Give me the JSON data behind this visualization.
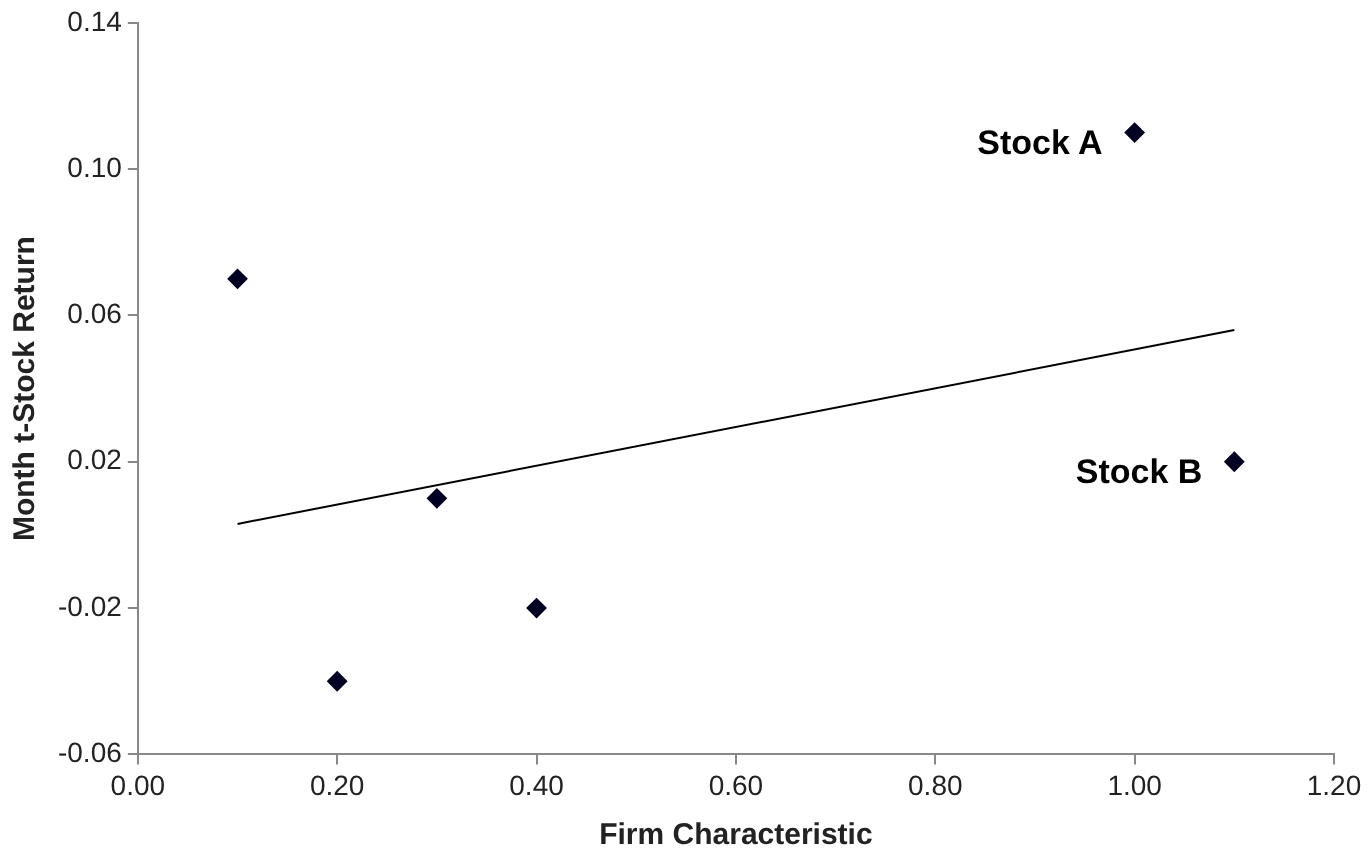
{
  "chart_data": {
    "type": "scatter",
    "xlabel": "Firm Characteristic",
    "ylabel": "Month t-Stock Return",
    "series": [
      {
        "color": "#000022",
        "marker": "diamond",
        "x": [
          0.1,
          0.2,
          0.3,
          0.4,
          1.0,
          1.1
        ],
        "values": [
          0.07,
          -0.04,
          0.01,
          -0.02,
          0.11,
          0.02
        ]
      },
      {
        "type": "line",
        "color": "#000000",
        "marker": "none",
        "x": [
          0.1,
          1.1
        ],
        "values": [
          0.003,
          0.056
        ]
      }
    ],
    "xlim": [
      0,
      1.2
    ],
    "xticks": [
      {
        "value": 0,
        "label": "0.00"
      },
      {
        "value": 0.2,
        "label": "0.20"
      },
      {
        "value": 0.4,
        "label": "0.40"
      },
      {
        "value": 0.6,
        "label": "0.60"
      },
      {
        "value": 0.8,
        "label": "0.80"
      },
      {
        "value": 1,
        "label": "1.00"
      },
      {
        "value": 1.2,
        "label": "1.20"
      }
    ],
    "ylim": [
      -0.06,
      0.14
    ],
    "yticks": [
      -0.06,
      -0.02,
      0.02,
      0.06,
      {
        "value": 0.1,
        "label": "0.10"
      },
      0.14
    ],
    "annotations": [
      {
        "text": "Stock A",
        "x": 1.0,
        "y": 0.11
      },
      {
        "text": "Stock B",
        "x": 1.1,
        "y": 0.02
      }
    ],
    "grid": false,
    "legend": false
  }
}
